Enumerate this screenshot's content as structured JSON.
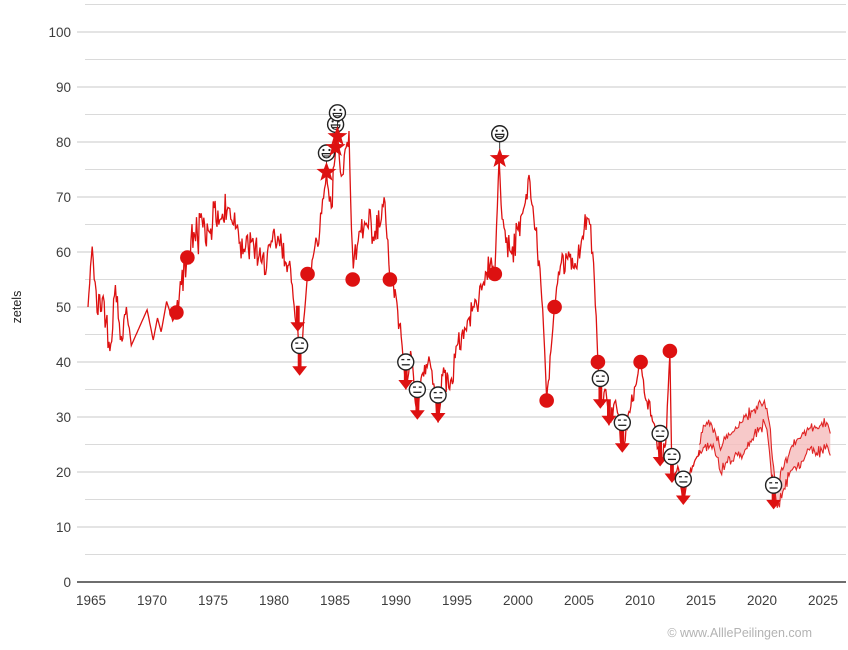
{
  "footer": {
    "watermark": "© www.AlllePeilingen.com"
  },
  "chart_data": {
    "type": "line",
    "title": "",
    "xlabel": "",
    "ylabel": "zetels",
    "xlim": [
      1964.4,
      2026.3
    ],
    "ylim": [
      0,
      105
    ],
    "grid": "horizontal, minor every 5, labeled every 10",
    "legend_position": "none",
    "x_ticks": [
      1965,
      1970,
      1975,
      1980,
      1985,
      1990,
      1995,
      2000,
      2005,
      2010,
      2015,
      2020,
      2025
    ],
    "y_ticks": [
      0,
      10,
      20,
      30,
      40,
      50,
      60,
      70,
      80,
      90,
      100
    ],
    "y_minor_step": 5,
    "line_color": "#dd1111",
    "band_fill_color": "#f5bcbc",
    "face_outline_color": "#222222",
    "marker_legend": {
      "election_result": "filled-circle",
      "record_high": "red-star with grinning-face-icon above",
      "record_low": "red-down-arrow with neutral-face-icon above",
      "recent_polls": "min-max band"
    },
    "poll_line_keypoints_year_seats_jitter": [
      [
        1964.75,
        50,
        0
      ],
      [
        1965.1,
        61,
        2
      ],
      [
        1965.5,
        49,
        4
      ],
      [
        1966.0,
        52,
        4
      ],
      [
        1966.55,
        42,
        3
      ],
      [
        1967.0,
        54,
        3
      ],
      [
        1967.4,
        44,
        3
      ],
      [
        1967.9,
        50,
        2
      ],
      [
        1968.3,
        43,
        0
      ],
      [
        1969.0,
        46.5,
        0
      ],
      [
        1969.6,
        49.5,
        0
      ],
      [
        1970.1,
        44,
        0
      ],
      [
        1970.45,
        48,
        0
      ],
      [
        1970.75,
        45.5,
        0
      ],
      [
        1971.2,
        51,
        0
      ],
      [
        1971.7,
        47.5,
        0
      ],
      [
        1972.0,
        49.5,
        1
      ],
      [
        1972.4,
        54,
        5
      ],
      [
        1972.9,
        59,
        5
      ],
      [
        1973.5,
        63,
        5
      ],
      [
        1974.1,
        66,
        5
      ],
      [
        1974.6,
        64,
        5
      ],
      [
        1975.1,
        68,
        4
      ],
      [
        1975.7,
        66,
        5
      ],
      [
        1976.3,
        68,
        4
      ],
      [
        1977.0,
        65,
        4
      ],
      [
        1977.6,
        60,
        4
      ],
      [
        1978.2,
        62,
        4
      ],
      [
        1979.0,
        58,
        4
      ],
      [
        1979.7,
        61,
        4
      ],
      [
        1980.4,
        62,
        4
      ],
      [
        1981.0,
        58,
        3
      ],
      [
        1981.5,
        54,
        3
      ],
      [
        1981.95,
        46,
        2
      ],
      [
        1982.1,
        38.5,
        1
      ],
      [
        1982.5,
        49,
        2
      ],
      [
        1982.75,
        56,
        1
      ],
      [
        1983.2,
        59,
        4
      ],
      [
        1983.9,
        67,
        3
      ],
      [
        1984.3,
        74.5,
        1
      ],
      [
        1984.7,
        68,
        4
      ],
      [
        1985.0,
        77,
        2
      ],
      [
        1985.2,
        81,
        1
      ],
      [
        1985.6,
        74,
        4
      ],
      [
        1986.0,
        80,
        3
      ],
      [
        1986.15,
        82,
        1
      ],
      [
        1986.35,
        64,
        3
      ],
      [
        1986.5,
        57,
        2
      ],
      [
        1986.9,
        62,
        4
      ],
      [
        1987.5,
        65,
        4
      ],
      [
        1988.2,
        62,
        5
      ],
      [
        1988.8,
        66,
        4
      ],
      [
        1989.1,
        69,
        3
      ],
      [
        1989.5,
        55,
        1
      ],
      [
        1990.0,
        52,
        3
      ],
      [
        1990.5,
        43,
        2
      ],
      [
        1990.8,
        35,
        1
      ],
      [
        1991.2,
        42,
        2
      ],
      [
        1991.75,
        30,
        1
      ],
      [
        1992.2,
        38,
        3
      ],
      [
        1992.7,
        41,
        3
      ],
      [
        1993.1,
        36,
        2
      ],
      [
        1993.45,
        29,
        1
      ],
      [
        1993.9,
        39,
        3
      ],
      [
        1994.4,
        35,
        3
      ],
      [
        1995.0,
        43,
        3
      ],
      [
        1995.7,
        46,
        3
      ],
      [
        1996.4,
        50,
        3
      ],
      [
        1997.1,
        54,
        3
      ],
      [
        1997.8,
        59,
        3
      ],
      [
        1998.1,
        56,
        1
      ],
      [
        1998.45,
        77,
        0
      ],
      [
        1998.7,
        66,
        3
      ],
      [
        1999.4,
        60,
        4
      ],
      [
        2000.0,
        64,
        4
      ],
      [
        2000.6,
        69,
        3
      ],
      [
        2000.9,
        74,
        1
      ],
      [
        2001.3,
        66,
        3
      ],
      [
        2001.8,
        57,
        3
      ],
      [
        2002.1,
        46,
        2
      ],
      [
        2002.35,
        33,
        1
      ],
      [
        2002.7,
        42,
        2
      ],
      [
        2003.0,
        50,
        1
      ],
      [
        2003.4,
        56,
        3
      ],
      [
        2004.0,
        59,
        3
      ],
      [
        2004.6,
        57,
        3
      ],
      [
        2005.2,
        62,
        3
      ],
      [
        2005.8,
        66,
        3
      ],
      [
        2006.2,
        58,
        3
      ],
      [
        2006.55,
        40,
        1
      ],
      [
        2006.75,
        32,
        1
      ],
      [
        2007.2,
        35,
        2
      ],
      [
        2007.45,
        28.5,
        1
      ],
      [
        2008.0,
        33,
        2
      ],
      [
        2008.55,
        24,
        1
      ],
      [
        2009.1,
        31,
        2
      ],
      [
        2009.7,
        36,
        2
      ],
      [
        2010.05,
        40,
        1
      ],
      [
        2010.5,
        33,
        2
      ],
      [
        2011.1,
        29,
        2
      ],
      [
        2011.65,
        21.5,
        1
      ],
      [
        2012.1,
        25,
        2
      ],
      [
        2012.45,
        41.5,
        0
      ],
      [
        2012.62,
        18.5,
        1
      ],
      [
        2013.1,
        21,
        1.5
      ],
      [
        2013.55,
        14.5,
        0
      ],
      [
        2014.0,
        19,
        1.5
      ],
      [
        2014.6,
        22.5,
        1.2
      ],
      [
        2014.85,
        24,
        1
      ]
    ],
    "poll_band_year_low_high": [
      [
        2014.85,
        23,
        25
      ],
      [
        2015.2,
        24.5,
        28.5
      ],
      [
        2015.8,
        25,
        29
      ],
      [
        2016.2,
        23,
        27
      ],
      [
        2016.6,
        20,
        24
      ],
      [
        2017.0,
        21.5,
        26
      ],
      [
        2017.5,
        22,
        27
      ],
      [
        2018.0,
        23,
        28
      ],
      [
        2018.6,
        24,
        30
      ],
      [
        2019.2,
        26,
        31
      ],
      [
        2019.8,
        28,
        33
      ],
      [
        2020.2,
        29,
        33
      ],
      [
        2020.6,
        24,
        29
      ],
      [
        2020.95,
        17,
        21
      ],
      [
        2021.25,
        13.5,
        17
      ],
      [
        2021.8,
        17,
        21
      ],
      [
        2022.3,
        20,
        24
      ],
      [
        2022.9,
        21,
        26
      ],
      [
        2023.4,
        22,
        27
      ],
      [
        2023.9,
        24,
        28
      ],
      [
        2024.4,
        23,
        28
      ],
      [
        2024.9,
        24,
        29
      ],
      [
        2025.3,
        25,
        29
      ],
      [
        2025.6,
        23,
        27
      ]
    ],
    "election_results_year_seats": [
      [
        1972.0,
        49
      ],
      [
        1972.9,
        59
      ],
      [
        1982.75,
        56
      ],
      [
        1986.45,
        55
      ],
      [
        1989.5,
        55
      ],
      [
        1998.1,
        56
      ],
      [
        2002.35,
        33
      ],
      [
        2003.0,
        50
      ],
      [
        2006.55,
        40
      ],
      [
        2010.05,
        40
      ],
      [
        2012.45,
        42
      ]
    ],
    "record_highs": [
      {
        "year": 1984.3,
        "seats": 74.5,
        "face_seats": 78,
        "face": "grinning-face"
      },
      {
        "year": 1985.05,
        "seats": 79,
        "face_seats": 83.2,
        "face": "grinning-face"
      },
      {
        "year": 1985.2,
        "seats": 81,
        "face_seats": 85.3,
        "face": "grinning-face"
      },
      {
        "year": 1998.5,
        "seats": 77,
        "face_seats": 81.5,
        "face": "grinning-face"
      }
    ],
    "record_lows": [
      {
        "year": 1981.95,
        "seats": 45.5,
        "face_seats": null,
        "face": null
      },
      {
        "year": 1982.1,
        "seats": 37.5,
        "face_seats": 43,
        "face": "neutral-face"
      },
      {
        "year": 1990.8,
        "seats": 35,
        "face_seats": 40,
        "face": "neutral-face"
      },
      {
        "year": 1991.75,
        "seats": 29.5,
        "face_seats": 35,
        "face": "neutral-face"
      },
      {
        "year": 1993.45,
        "seats": 29,
        "face_seats": 34,
        "face": "neutral-face"
      },
      {
        "year": 2006.75,
        "seats": 31.5,
        "face_seats": 37,
        "face": "neutral-face"
      },
      {
        "year": 2007.45,
        "seats": 28.5,
        "face_seats": null,
        "face": null
      },
      {
        "year": 2008.55,
        "seats": 23.5,
        "face_seats": 29,
        "face": "neutral-face"
      },
      {
        "year": 2011.65,
        "seats": 21,
        "face_seats": 27,
        "face": "neutral-face"
      },
      {
        "year": 2012.62,
        "seats": 18,
        "face_seats": 22.8,
        "face": "neutral-face"
      },
      {
        "year": 2013.55,
        "seats": 14,
        "face_seats": 18.7,
        "face": "neutral-face"
      },
      {
        "year": 2020.95,
        "seats": 13.2,
        "face_seats": 17.6,
        "face": "neutral-face"
      }
    ]
  }
}
